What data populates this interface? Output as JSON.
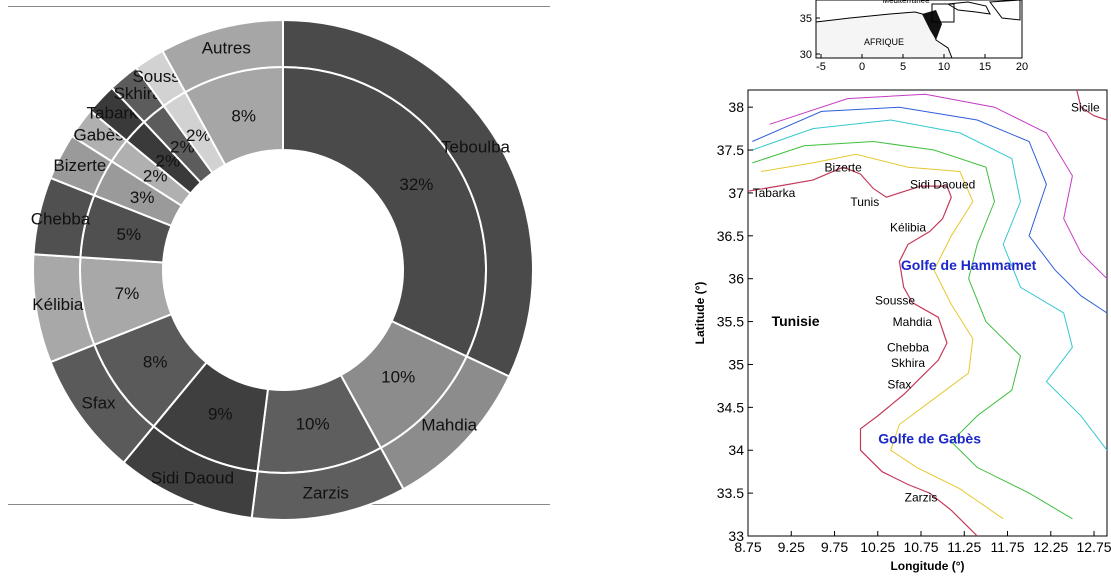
{
  "chart_data": [
    {
      "type": "pie",
      "subtype": "double-donut",
      "rings": [
        {
          "name": "inner",
          "slices": [
            {
              "label": "32%",
              "value": 32,
              "color": "#4a4a4a"
            },
            {
              "label": "10%",
              "value": 10,
              "color": "#8c8c8c"
            },
            {
              "label": "10%",
              "value": 10,
              "color": "#5e5e5e"
            },
            {
              "label": "9%",
              "value": 9,
              "color": "#3f3f3f"
            },
            {
              "label": "8%",
              "value": 8,
              "color": "#5a5a5a"
            },
            {
              "label": "7%",
              "value": 7,
              "color": "#a8a8a8"
            },
            {
              "label": "5%",
              "value": 5,
              "color": "#505050"
            },
            {
              "label": "3%",
              "value": 3,
              "color": "#9a9a9a"
            },
            {
              "label": "2%",
              "value": 2,
              "color": "#b0b0b0"
            },
            {
              "label": "2%",
              "value": 2,
              "color": "#3a3a3a"
            },
            {
              "label": "2%",
              "value": 2,
              "color": "#5c5c5c"
            },
            {
              "label": "2%",
              "value": 2,
              "color": "#d2d2d2"
            },
            {
              "label": "8%",
              "value": 8,
              "color": "#a6a6a6"
            }
          ]
        },
        {
          "name": "outer",
          "slices": [
            {
              "label": "Teboulba",
              "value": 32,
              "color": "#4a4a4a"
            },
            {
              "label": "Mahdia",
              "value": 10,
              "color": "#8c8c8c"
            },
            {
              "label": "Zarzis",
              "value": 10,
              "color": "#5e5e5e"
            },
            {
              "label": "Sidi Daoud",
              "value": 9,
              "color": "#3f3f3f"
            },
            {
              "label": "Sfax",
              "value": 8,
              "color": "#5a5a5a"
            },
            {
              "label": "Kélibia",
              "value": 7,
              "color": "#a8a8a8"
            },
            {
              "label": "Chebba",
              "value": 5,
              "color": "#505050"
            },
            {
              "label": "Bizerte",
              "value": 3,
              "color": "#9a9a9a"
            },
            {
              "label": "Gabès",
              "value": 2,
              "color": "#b0b0b0"
            },
            {
              "label": "Tabarka",
              "value": 2,
              "color": "#3a3a3a"
            },
            {
              "label": "Skhira",
              "value": 2,
              "color": "#5c5c5c"
            },
            {
              "label": "Sousse",
              "value": 2,
              "color": "#d2d2d2"
            },
            {
              "label": "Autres",
              "value": 8,
              "color": "#a6a6a6"
            }
          ]
        }
      ]
    },
    {
      "type": "map",
      "xlabel": "Longitude (°)",
      "ylabel": "Latitude (°)",
      "xlim": [
        8.75,
        12.9
      ],
      "ylim": [
        33,
        38.2
      ],
      "xticks": [
        "8.75",
        "9.25",
        "9.75",
        "10.25",
        "10.75",
        "11.25",
        "11.75",
        "12.25",
        "12.75"
      ],
      "yticks": [
        "33",
        "33.5",
        "34",
        "34.5",
        "35",
        "35.5",
        "36",
        "36.5",
        "37",
        "37.5",
        "38"
      ],
      "places": [
        {
          "name": "Sicile",
          "lon": 12.65,
          "lat": 37.95,
          "color": "#000000"
        },
        {
          "name": "Bizerte",
          "lon": 9.85,
          "lat": 37.25,
          "color": "#000000"
        },
        {
          "name": "Sidi Daoued",
          "lon": 11.0,
          "lat": 37.05,
          "color": "#000000"
        },
        {
          "name": "Tabarka",
          "lon": 9.05,
          "lat": 36.95,
          "color": "#000000"
        },
        {
          "name": "Tunis",
          "lon": 10.1,
          "lat": 36.85,
          "color": "#000000"
        },
        {
          "name": "Kélibia",
          "lon": 10.6,
          "lat": 36.55,
          "color": "#000000"
        },
        {
          "name": "Golfe de Hammamet",
          "lon": 11.3,
          "lat": 36.1,
          "color": "#1b27c8"
        },
        {
          "name": "Sousse",
          "lon": 10.45,
          "lat": 35.7,
          "color": "#000000"
        },
        {
          "name": "Tunisie",
          "lon": 9.3,
          "lat": 35.45,
          "color": "#000000"
        },
        {
          "name": "Mahdia",
          "lon": 10.65,
          "lat": 35.45,
          "color": "#000000"
        },
        {
          "name": "Chebba",
          "lon": 10.6,
          "lat": 35.15,
          "color": "#000000"
        },
        {
          "name": "Skhira",
          "lon": 10.6,
          "lat": 34.97,
          "color": "#000000"
        },
        {
          "name": "Sfax",
          "lon": 10.5,
          "lat": 34.72,
          "color": "#000000"
        },
        {
          "name": "Golfe de Gabès",
          "lon": 10.85,
          "lat": 34.08,
          "color": "#1b27c8"
        },
        {
          "name": "Zarzis",
          "lon": 10.75,
          "lat": 33.4,
          "color": "#000000"
        }
      ]
    },
    {
      "type": "map",
      "role": "inset",
      "xticks": [
        "-5",
        "0",
        "5",
        "10",
        "15",
        "20"
      ],
      "yticks": [
        "35",
        "30"
      ],
      "labels": [
        "Méditerranée",
        "AFRIQUE"
      ]
    }
  ]
}
